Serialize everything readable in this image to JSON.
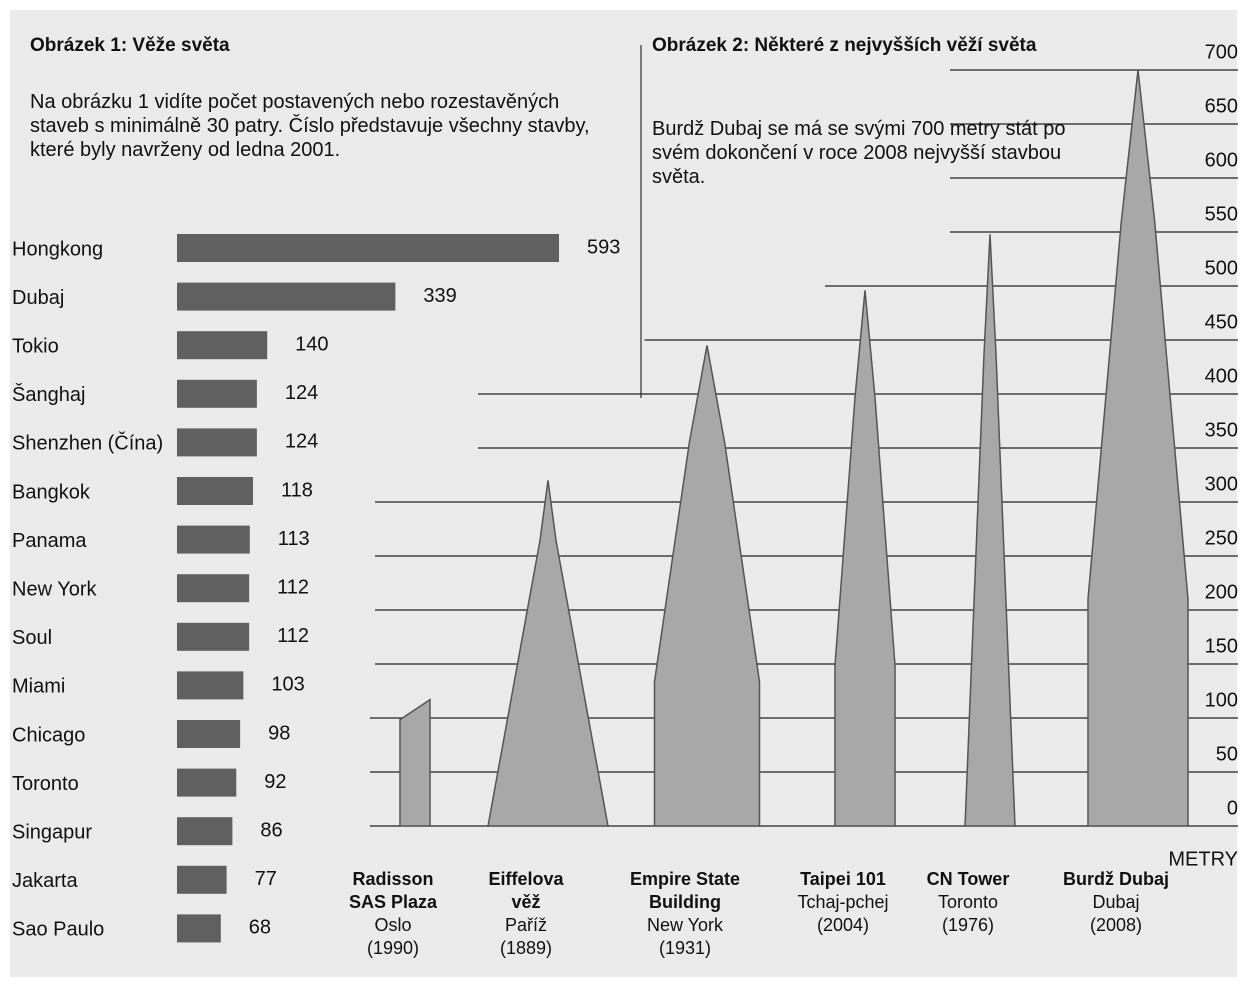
{
  "chart_data": [
    {
      "type": "bar",
      "orientation": "horizontal",
      "title": "Obrázek 1: Věže světa",
      "subtitle": "Na obrázku 1 vidíte počet postavených nebo rozestavěných staveb s minimálně 30 patry. Číslo představuje všechny stavby, které byly navrženy od ledna 2001.",
      "categories": [
        "Hongkong",
        "Dubaj",
        "Tokio",
        "Šanghaj",
        "Shenzhen (Čína)",
        "Bangkok",
        "Panama",
        "New York",
        "Soul",
        "Miami",
        "Chicago",
        "Toronto",
        "Singapur",
        "Jakarta",
        "Sao Paulo"
      ],
      "values": [
        593,
        339,
        140,
        124,
        124,
        118,
        113,
        112,
        112,
        103,
        98,
        92,
        86,
        77,
        68
      ],
      "color": "#606060"
    },
    {
      "type": "pictograph",
      "title": "Obrázek 2: Některé z nejvyšších věží světa",
      "subtitle": "Burdž Dubaj se má se svými 700 metry stát po svém dokončení v roce 2008 nejvyšší stavbou světa.",
      "categories": [
        "Radisson SAS Plaza",
        "Eiffelova věž",
        "Empire State Building",
        "Taipei 101",
        "CN Tower",
        "Burdž Dubaj"
      ],
      "cities": [
        "Oslo",
        "Paříž",
        "New York",
        "Tchaj-pchej",
        "Toronto",
        "Dubaj"
      ],
      "years": [
        "(1990)",
        "(1889)",
        "(1931)",
        "(2004)",
        "(1976)",
        "(2008)"
      ],
      "values": [
        117,
        320,
        445,
        496,
        548,
        700
      ],
      "ylabel": "METRY",
      "ylim": [
        0,
        700
      ],
      "yticks": [
        0,
        50,
        100,
        150,
        200,
        250,
        300,
        350,
        400,
        450,
        500,
        550,
        600,
        650,
        700
      ],
      "color": "#a8a8a8"
    }
  ]
}
